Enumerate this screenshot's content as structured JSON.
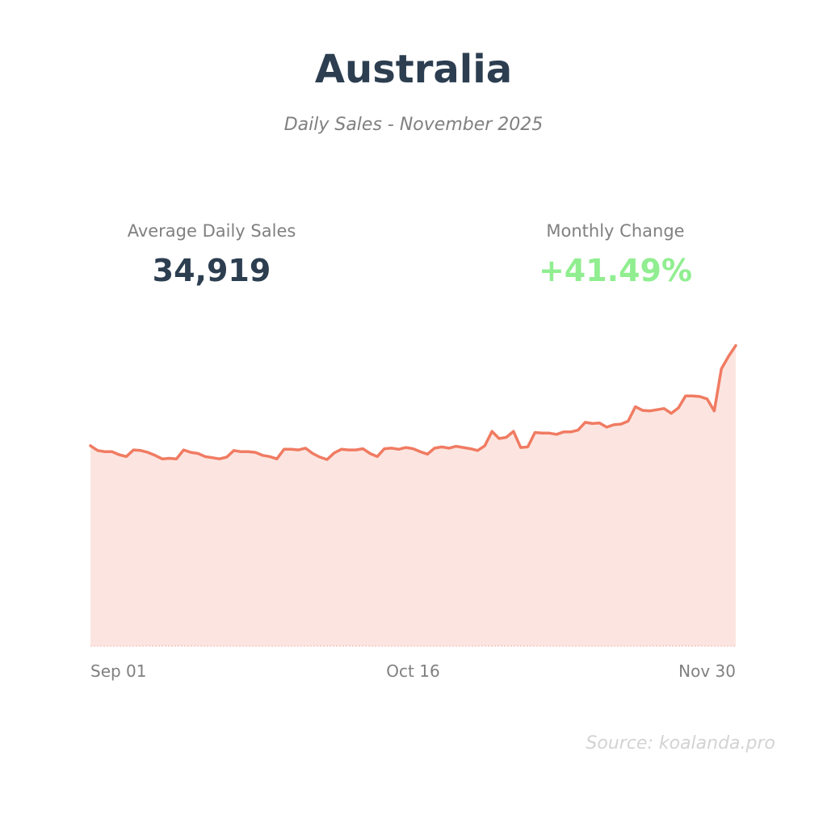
{
  "header": {
    "title": "Australia",
    "subtitle": "Daily Sales - November 2025"
  },
  "stats": {
    "average_label": "Average Daily Sales",
    "average_value": "34,919",
    "change_label": "Monthly Change",
    "change_value": "+41.49%"
  },
  "footer": {
    "source": "Source: koalanda.pro"
  },
  "colors": {
    "line": "#f07b62",
    "fill": "#fce5e0",
    "title": "#2c3e50",
    "positive": "#90ee90"
  },
  "chart_data": {
    "type": "area",
    "x_ticks": [
      "Sep 01",
      "Oct 16",
      "Nov 30"
    ],
    "grid": false,
    "legend": "none",
    "ylim": [
      0,
      70
    ],
    "series": [
      {
        "values": [
          33.4,
          32.6,
          32.4,
          32.4,
          31.9,
          31.6,
          32.7,
          32.6,
          32.3,
          31.8,
          31.2,
          31.3,
          31.2,
          32.7,
          32.3,
          32.1,
          31.6,
          31.4,
          31.2,
          31.5,
          32.6,
          32.4,
          32.4,
          32.3,
          31.8,
          31.6,
          31.2,
          32.8,
          32.8,
          32.7,
          33.0,
          32.1,
          31.5,
          31.1,
          32.2,
          32.8,
          32.7,
          32.7,
          32.9,
          32.1,
          31.6,
          32.9,
          33.0,
          32.8,
          33.1,
          32.9,
          32.4,
          32.0,
          33.0,
          33.2,
          33.0,
          33.3,
          33.1,
          32.9,
          32.6,
          33.4,
          35.8,
          34.6,
          34.8,
          35.8,
          33.1,
          33.2,
          35.6,
          35.5,
          35.5,
          35.3,
          35.7,
          35.7,
          36.0,
          37.3,
          37.1,
          37.2,
          36.5,
          36.9,
          37.0,
          37.5,
          39.9,
          39.3,
          39.2,
          39.4,
          39.6,
          38.8,
          39.7,
          41.7,
          41.7,
          41.6,
          41.2,
          39.2,
          46.2,
          48.3,
          50.1
        ]
      }
    ]
  }
}
